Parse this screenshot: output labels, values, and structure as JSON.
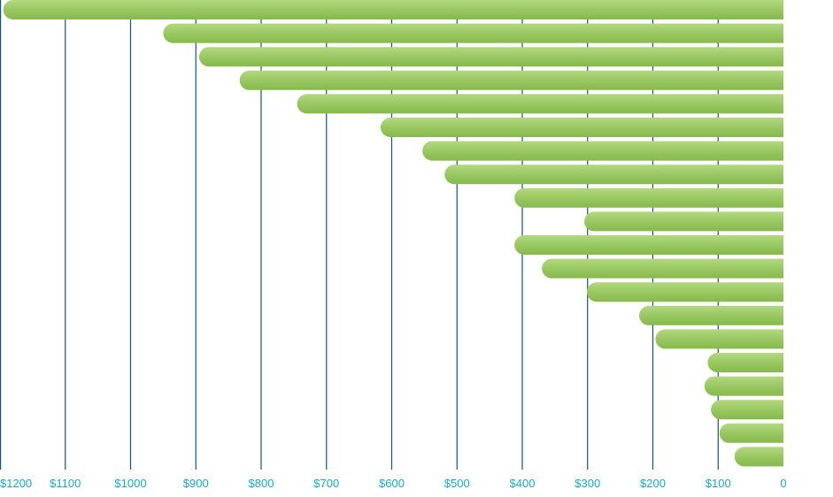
{
  "chart_data": {
    "type": "bar",
    "orientation": "horizontal",
    "x_direction": "reversed",
    "title": "",
    "xlabel": "",
    "ylabel": "",
    "xlim": [
      0,
      1200
    ],
    "xticks": [
      1200,
      1100,
      1000,
      900,
      800,
      700,
      600,
      500,
      400,
      300,
      200,
      100,
      0
    ],
    "xtick_labels": [
      "$1200",
      "$1100",
      "$1000",
      "$900",
      "$800",
      "$700",
      "$600",
      "$500",
      "$400",
      "$300",
      "$200",
      "$100",
      "0"
    ],
    "categories": [
      "",
      "",
      "",
      "",
      "",
      "",
      "",
      "",
      "",
      "",
      "",
      "",
      "",
      "",
      "",
      "",
      "",
      "",
      "",
      ""
    ],
    "values": [
      1195,
      950,
      895,
      833,
      745,
      617,
      553,
      519,
      412,
      305,
      412,
      370,
      301,
      221,
      196,
      116,
      121,
      111,
      98,
      75
    ],
    "grid": true,
    "legend": "none",
    "colors": {
      "bar_top": "#b2d880",
      "bar_mid": "#98c660",
      "bar_bottom": "#86b94c",
      "grid": "#1d4f7f",
      "tick_label": "#1aa8c8"
    }
  }
}
